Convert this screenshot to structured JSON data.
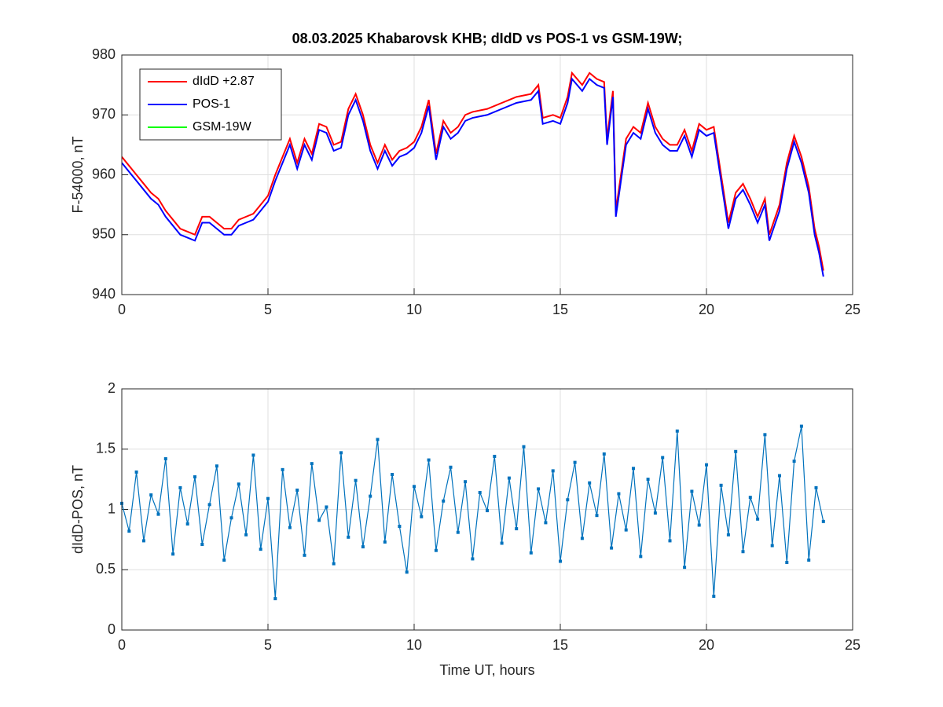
{
  "chart_data": [
    {
      "type": "line",
      "title": "08.03.2025  Khabarovsk KHB; dIdD vs POS-1 vs GSM-19W;",
      "ylabel": "F-54000, nT",
      "x": [
        0,
        0.25,
        0.5,
        0.75,
        1,
        1.25,
        1.5,
        1.75,
        2,
        2.25,
        2.5,
        2.75,
        3,
        3.25,
        3.5,
        3.75,
        4,
        4.25,
        4.5,
        4.75,
        5,
        5.25,
        5.5,
        5.75,
        6,
        6.25,
        6.5,
        6.75,
        7,
        7.25,
        7.5,
        7.75,
        8,
        8.25,
        8.5,
        8.75,
        9,
        9.25,
        9.5,
        9.75,
        10,
        10.25,
        10.5,
        10.75,
        11,
        11.25,
        11.5,
        11.75,
        12,
        12.5,
        13,
        13.5,
        14,
        14.25,
        14.4,
        14.75,
        15,
        15.25,
        15.4,
        15.75,
        16,
        16.25,
        16.5,
        16.6,
        16.8,
        16.9,
        17.25,
        17.5,
        17.75,
        18,
        18.25,
        18.5,
        18.75,
        19,
        19.25,
        19.5,
        19.75,
        20,
        20.25,
        20.5,
        20.75,
        21,
        21.25,
        21.5,
        21.75,
        22,
        22.15,
        22.5,
        22.75,
        23,
        23.25,
        23.5,
        23.7,
        23.85,
        24
      ],
      "series": [
        {
          "name": "dIdD +2.87",
          "color": "#ff0000",
          "values": [
            963,
            961.5,
            960,
            958.5,
            957,
            956,
            954,
            952.5,
            951,
            950.5,
            950,
            953,
            953,
            952,
            951,
            951,
            952.5,
            953,
            953.5,
            955,
            956.5,
            960,
            963,
            966,
            962,
            966,
            963.5,
            968.5,
            968,
            965,
            965.5,
            971,
            973.5,
            970,
            965,
            962,
            965,
            962.5,
            964,
            964.5,
            965.5,
            968,
            972.5,
            963.5,
            969,
            967,
            968,
            970,
            970.5,
            971,
            972,
            973,
            973.5,
            975,
            969.5,
            970,
            969.5,
            973,
            977,
            975,
            977,
            976,
            975.5,
            966,
            974,
            954,
            966,
            968,
            967,
            972,
            968,
            966,
            965,
            965,
            967.5,
            964,
            968.5,
            967.5,
            968,
            960,
            952,
            957,
            958.5,
            956,
            953,
            956,
            950,
            955,
            962,
            966.5,
            963,
            958,
            951,
            948,
            944
          ]
        },
        {
          "name": "POS-1",
          "color": "#0000ff",
          "values": [
            962,
            960.5,
            959,
            957.5,
            956,
            955,
            953,
            951.5,
            950,
            949.5,
            949,
            952,
            952,
            951,
            950,
            950,
            951.5,
            952,
            952.5,
            954,
            955.5,
            959,
            962,
            965,
            961,
            965,
            962.5,
            967.5,
            967,
            964,
            964.5,
            970,
            972.5,
            969,
            964,
            961,
            964,
            961.5,
            963,
            963.5,
            964.5,
            967,
            971.5,
            962.5,
            968,
            966,
            967,
            969,
            969.5,
            970,
            971,
            972,
            972.5,
            974,
            968.5,
            969,
            968.5,
            972,
            976,
            974,
            976,
            975,
            974.5,
            965,
            973,
            953,
            965,
            967,
            966,
            971,
            967,
            965,
            964,
            964,
            966.5,
            963,
            967.5,
            966.5,
            967,
            959,
            951,
            956,
            957.5,
            955,
            952,
            955,
            949,
            954,
            961,
            965.5,
            962,
            957,
            950,
            947,
            943
          ]
        },
        {
          "name": "GSM-19W",
          "color": "#00ff00",
          "values": [
            null,
            null,
            null,
            null,
            null,
            null,
            null,
            null,
            null,
            null,
            null,
            null,
            null,
            null,
            null,
            null,
            null,
            null,
            null,
            null,
            null,
            null,
            null,
            null,
            null,
            null,
            null,
            null,
            null,
            null,
            null,
            null,
            null,
            null,
            null,
            null,
            null,
            null,
            null,
            null,
            null,
            null,
            null,
            null,
            null,
            null,
            null,
            null,
            null,
            null,
            null,
            null,
            null,
            null,
            null,
            null,
            null,
            null,
            null,
            null,
            null,
            null,
            null,
            null,
            null,
            null,
            null,
            null,
            null,
            null,
            null,
            null,
            null,
            null,
            null,
            null,
            null,
            null,
            null,
            null,
            null,
            null,
            null,
            null,
            null,
            null,
            null,
            null,
            null,
            null,
            null,
            null,
            null,
            null,
            null
          ]
        }
      ],
      "xlim": [
        0,
        25
      ],
      "xticks": [
        0,
        5,
        10,
        15,
        20,
        25
      ],
      "ylim": [
        940,
        980
      ],
      "yticks": [
        940,
        950,
        960,
        970,
        980
      ],
      "grid": true,
      "legend": "upper left"
    },
    {
      "type": "line",
      "xlabel": "Time UT, hours",
      "ylabel": "dIdD-POS, nT",
      "x": [
        0,
        0.25,
        0.5,
        0.75,
        1,
        1.25,
        1.5,
        1.75,
        2,
        2.25,
        2.5,
        2.75,
        3,
        3.25,
        3.5,
        3.75,
        4,
        4.25,
        4.5,
        4.75,
        5,
        5.25,
        5.5,
        5.75,
        6,
        6.25,
        6.5,
        6.75,
        7,
        7.25,
        7.5,
        7.75,
        8,
        8.25,
        8.5,
        8.75,
        9,
        9.25,
        9.5,
        9.75,
        10,
        10.25,
        10.5,
        10.75,
        11,
        11.25,
        11.5,
        11.75,
        12,
        12.25,
        12.5,
        12.75,
        13,
        13.25,
        13.5,
        13.75,
        14,
        14.25,
        14.5,
        14.75,
        15,
        15.25,
        15.5,
        15.75,
        16,
        16.25,
        16.5,
        16.75,
        17,
        17.25,
        17.5,
        17.75,
        18,
        18.25,
        18.5,
        18.75,
        19,
        19.25,
        19.5,
        19.75,
        20,
        20.25,
        20.5,
        20.75,
        21,
        21.25,
        21.5,
        21.75,
        22,
        22.25,
        22.5,
        22.75,
        23,
        23.25,
        23.5,
        23.75,
        24
      ],
      "series": [
        {
          "color": "#0072bd",
          "values": [
            1.05,
            0.82,
            1.31,
            0.74,
            1.12,
            0.96,
            1.42,
            0.63,
            1.18,
            0.88,
            1.27,
            0.71,
            1.04,
            1.36,
            0.58,
            0.93,
            1.21,
            0.79,
            1.45,
            0.67,
            1.09,
            0.26,
            1.33,
            0.85,
            1.16,
            0.62,
            1.38,
            0.91,
            1.02,
            0.55,
            1.47,
            0.77,
            1.24,
            0.69,
            1.11,
            1.58,
            0.73,
            1.29,
            0.86,
            0.48,
            1.19,
            0.94,
            1.41,
            0.66,
            1.07,
            1.35,
            0.81,
            1.23,
            0.59,
            1.14,
            0.99,
            1.44,
            0.72,
            1.26,
            0.84,
            1.52,
            0.64,
            1.17,
            0.89,
            1.32,
            0.57,
            1.08,
            1.39,
            0.76,
            1.22,
            0.95,
            1.46,
            0.68,
            1.13,
            0.83,
            1.34,
            0.61,
            1.25,
            0.97,
            1.43,
            0.74,
            1.65,
            0.52,
            1.15,
            0.87,
            1.37,
            0.28,
            1.2,
            0.79,
            1.48,
            0.65,
            1.1,
            0.92,
            1.62,
            0.7,
            1.28,
            0.56,
            1.4,
            1.69,
            0.58,
            1.18,
            0.9
          ]
        }
      ],
      "xlim": [
        0,
        25
      ],
      "xticks": [
        0,
        5,
        10,
        15,
        20,
        25
      ],
      "ylim": [
        0,
        2
      ],
      "yticks": [
        0,
        0.5,
        1,
        1.5,
        2
      ],
      "grid": true
    }
  ]
}
